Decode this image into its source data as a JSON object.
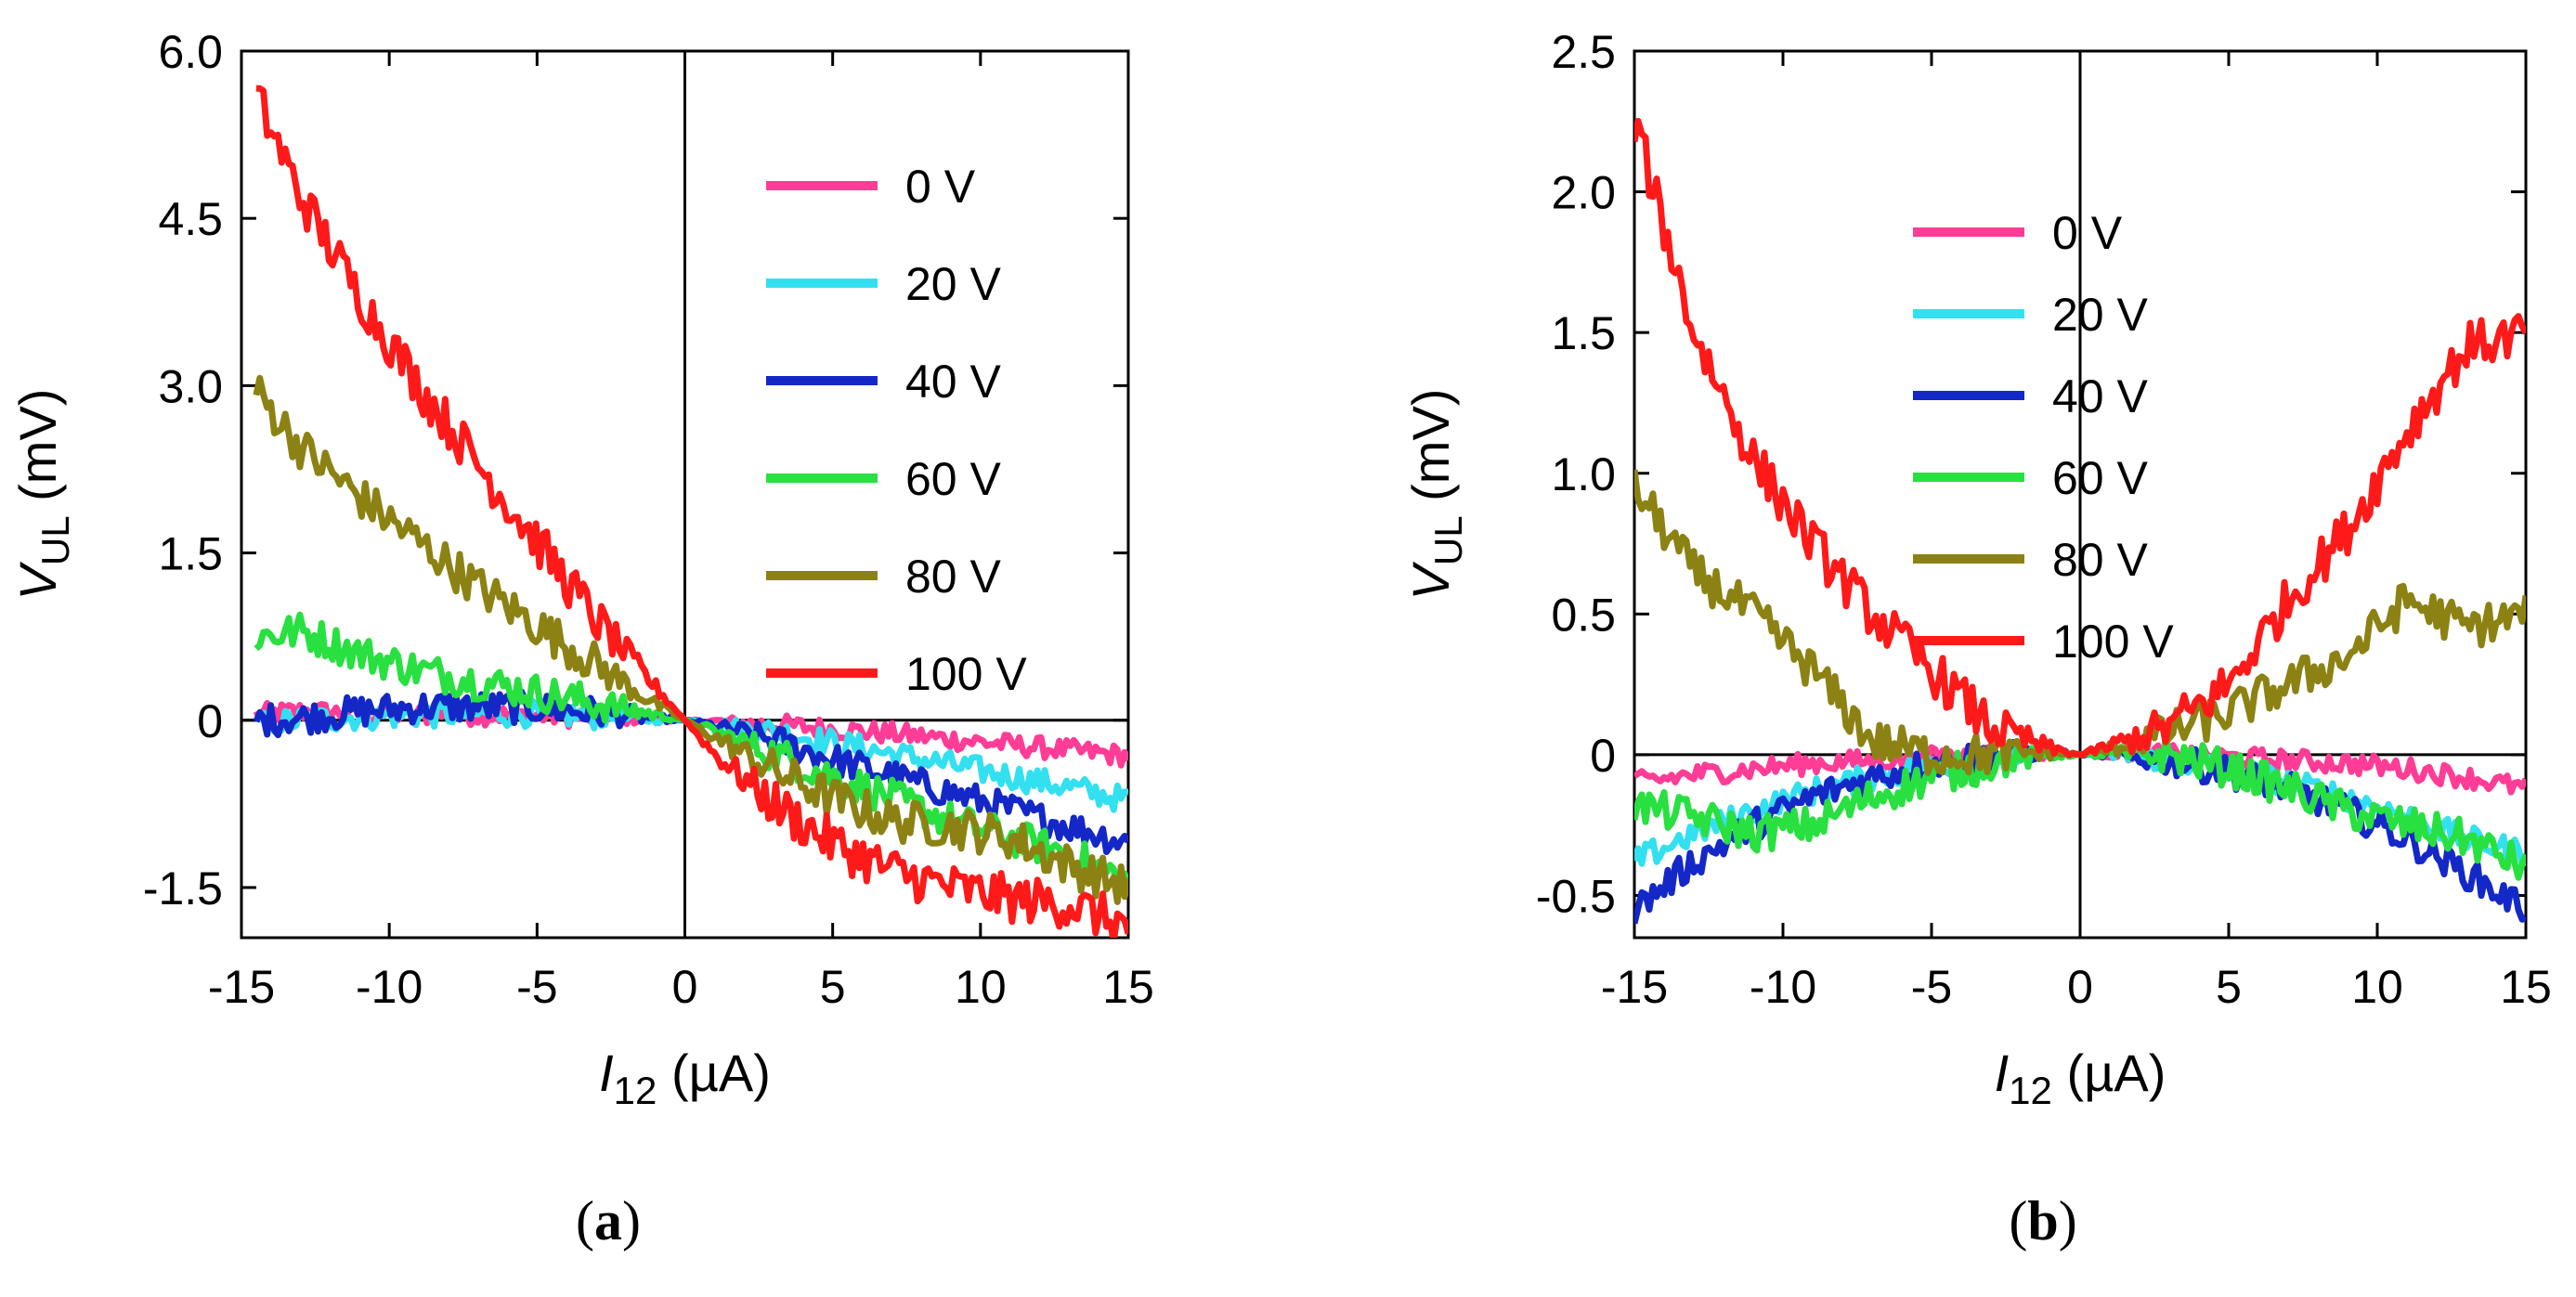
{
  "chart_data": [
    {
      "type": "line",
      "panel_label": "(a)",
      "panel_label_letter": "a",
      "xlabel": {
        "symbol": "I",
        "sub": "12",
        "unit": " (µA)"
      },
      "ylabel": {
        "symbol": "V",
        "sub": "UL",
        "unit": " (mV)"
      },
      "xlim": [
        -15,
        15
      ],
      "ylim": [
        -1.95,
        6.0
      ],
      "xticks": [
        -15,
        -10,
        -5,
        0,
        5,
        10,
        15
      ],
      "yticks": [
        -1.5,
        0,
        1.5,
        3.0,
        4.5,
        6.0
      ],
      "xtick_labels": [
        "-15",
        "-10",
        "-5",
        "0",
        "5",
        "10",
        "15"
      ],
      "ytick_labels": [
        "-1.5",
        "0",
        "1.5",
        "3.0",
        "4.5",
        "6.0"
      ],
      "legend_placement": "top-right",
      "x": [
        -14.5,
        -13,
        -11,
        -9,
        -7,
        -5,
        -3,
        -1,
        0,
        1,
        3,
        5,
        7,
        9,
        11,
        13,
        15
      ],
      "series": [
        {
          "name": "0 V",
          "color": "#ff3c96",
          "values": [
            0.05,
            0.08,
            0.06,
            0.05,
            0.05,
            0.04,
            0.03,
            0.01,
            0,
            -0.01,
            -0.04,
            -0.08,
            -0.12,
            -0.17,
            -0.22,
            -0.27,
            -0.32
          ]
        },
        {
          "name": "20 V",
          "color": "#33e0f0",
          "values": [
            -0.05,
            0.0,
            0.03,
            0.05,
            0.06,
            0.06,
            0.04,
            0.01,
            0,
            -0.03,
            -0.1,
            -0.2,
            -0.3,
            -0.4,
            -0.5,
            -0.6,
            -0.72
          ]
        },
        {
          "name": "40 V",
          "color": "#1428c8",
          "values": [
            0.0,
            0.02,
            0.08,
            0.12,
            0.12,
            0.11,
            0.07,
            0.02,
            0,
            -0.05,
            -0.18,
            -0.35,
            -0.5,
            -0.65,
            -0.8,
            -0.95,
            -1.1
          ]
        },
        {
          "name": "60 V",
          "color": "#28e040",
          "values": [
            0.75,
            0.8,
            0.6,
            0.45,
            0.35,
            0.25,
            0.15,
            0.05,
            0,
            -0.1,
            -0.3,
            -0.5,
            -0.7,
            -0.9,
            -1.05,
            -1.2,
            -1.45
          ]
        },
        {
          "name": "80 V",
          "color": "#8c8214",
          "values": [
            2.95,
            2.45,
            2.0,
            1.6,
            1.2,
            0.85,
            0.5,
            0.15,
            0,
            -0.15,
            -0.45,
            -0.7,
            -0.9,
            -0.95,
            -1.05,
            -1.3,
            -1.5
          ]
        },
        {
          "name": "100 V",
          "color": "#ff1a1a",
          "values": [
            5.6,
            4.7,
            3.8,
            3.0,
            2.3,
            1.6,
            0.9,
            0.3,
            0,
            -0.3,
            -0.75,
            -1.1,
            -1.35,
            -1.5,
            -1.6,
            -1.65,
            -1.85
          ]
        }
      ]
    },
    {
      "type": "line",
      "panel_label": "(b)",
      "panel_label_letter": "b",
      "xlabel": {
        "symbol": "I",
        "sub": "12",
        "unit": " (µA)"
      },
      "ylabel": {
        "symbol": "V",
        "sub": "UL",
        "unit": " (mV)"
      },
      "xlim": [
        -15,
        15
      ],
      "ylim": [
        -0.65,
        2.5
      ],
      "xticks": [
        -15,
        -10,
        -5,
        0,
        5,
        10,
        15
      ],
      "yticks": [
        -0.5,
        0,
        0.5,
        1.0,
        1.5,
        2.0,
        2.5
      ],
      "xtick_labels": [
        "-15",
        "-10",
        "-5",
        "0",
        "5",
        "10",
        "15"
      ],
      "ytick_labels": [
        "-0.5",
        "0",
        "0.5",
        "1.0",
        "1.5",
        "2.0",
        "2.5"
      ],
      "legend_placement": "center",
      "x": [
        -15,
        -13,
        -11,
        -9,
        -7,
        -5,
        -3,
        -1,
        0,
        1,
        3,
        5,
        7,
        9,
        11,
        13,
        15
      ],
      "series": [
        {
          "name": "0 V",
          "color": "#ff3c96",
          "values": [
            -0.1,
            -0.07,
            -0.05,
            -0.03,
            -0.02,
            -0.01,
            0.0,
            0.0,
            0,
            0.0,
            0.0,
            -0.01,
            -0.02,
            -0.03,
            -0.05,
            -0.08,
            -0.12
          ]
        },
        {
          "name": "20 V",
          "color": "#33e0f0",
          "values": [
            -0.38,
            -0.28,
            -0.2,
            -0.13,
            -0.08,
            -0.04,
            -0.01,
            0.0,
            0,
            0.0,
            -0.02,
            -0.05,
            -0.1,
            -0.15,
            -0.22,
            -0.3,
            -0.35
          ]
        },
        {
          "name": "40 V",
          "color": "#1428c8",
          "values": [
            -0.55,
            -0.38,
            -0.25,
            -0.15,
            -0.08,
            -0.03,
            0.0,
            0.01,
            0,
            0.0,
            -0.02,
            -0.06,
            -0.12,
            -0.2,
            -0.3,
            -0.42,
            -0.55
          ]
        },
        {
          "name": "60 V",
          "color": "#28e040",
          "values": [
            -0.18,
            -0.22,
            -0.28,
            -0.25,
            -0.15,
            -0.08,
            -0.03,
            0.0,
            0,
            0.0,
            0.0,
            -0.05,
            -0.12,
            -0.2,
            -0.25,
            -0.3,
            -0.4
          ]
        },
        {
          "name": "80 V",
          "color": "#8c8214",
          "values": [
            0.95,
            0.65,
            0.5,
            0.3,
            0.05,
            0.0,
            0.0,
            0.01,
            0,
            0.02,
            0.08,
            0.15,
            0.25,
            0.35,
            0.55,
            0.45,
            0.5
          ]
        },
        {
          "name": "100 V",
          "color": "#ff1a1a",
          "values": [
            2.25,
            1.5,
            1.05,
            0.75,
            0.5,
            0.3,
            0.1,
            0.02,
            0,
            0.03,
            0.1,
            0.25,
            0.55,
            0.8,
            1.15,
            1.45,
            1.5
          ]
        }
      ]
    }
  ]
}
